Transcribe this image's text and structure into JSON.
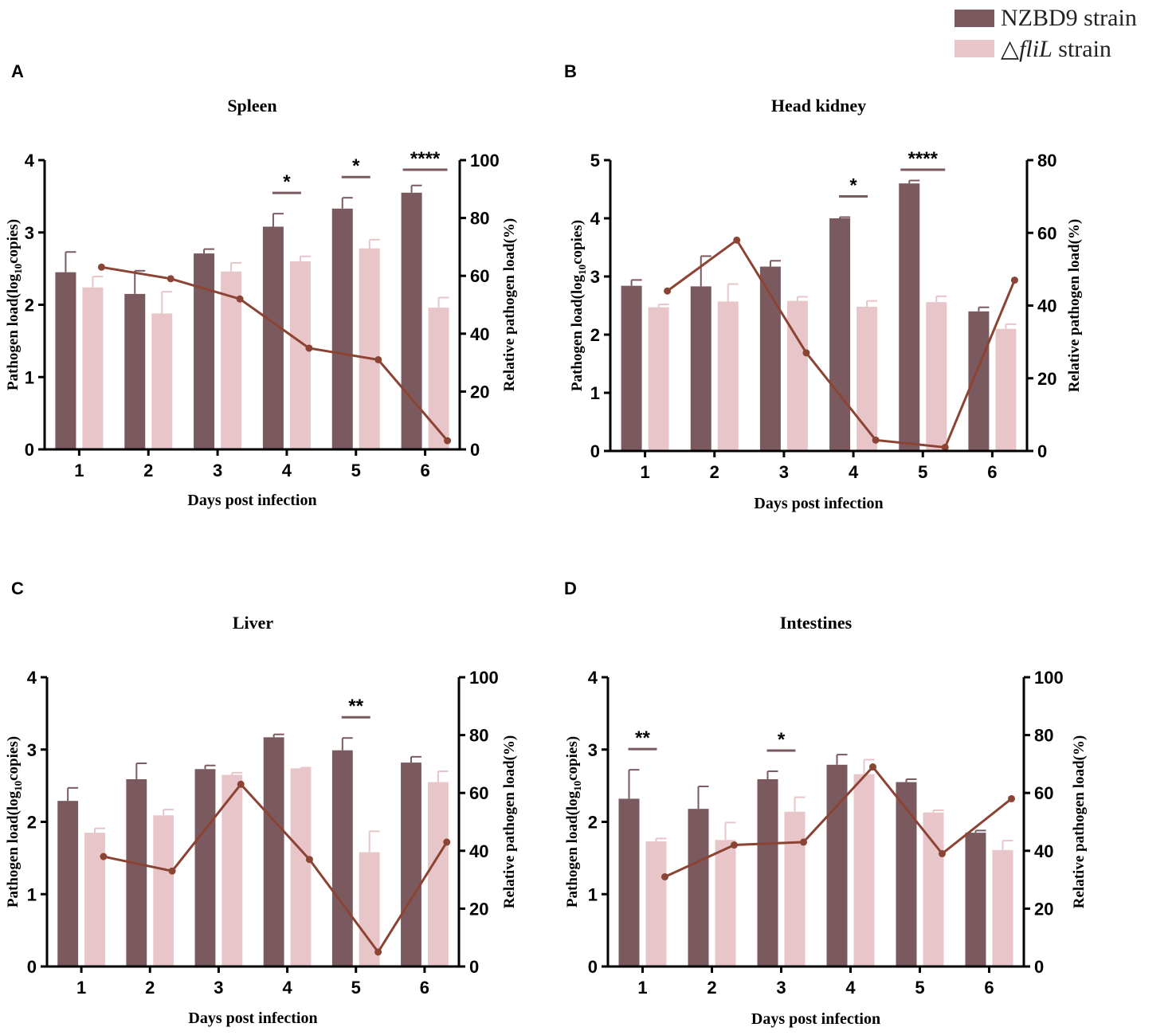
{
  "legend": {
    "nzbd9_label": "NZBD9 strain",
    "delta_symbol": "△",
    "delta_gene": "fliL",
    "delta_suffix": " strain"
  },
  "colors": {
    "nzbd9": "#7b5a5f",
    "delta": "#e8c5c8",
    "line": "#8b4434",
    "axis": "#000000"
  },
  "chart_data": [
    {
      "panel": "A",
      "type": "bar",
      "title": "Spleen",
      "xlabel": "Days post infection",
      "ylabel": "Pathogen load(log10copies)",
      "y2label": "Relative pathogen load(%)",
      "categories": [
        "1",
        "2",
        "3",
        "4",
        "5",
        "6"
      ],
      "ylim": [
        0,
        4
      ],
      "yticks": [
        0,
        1,
        2,
        3,
        4
      ],
      "y2lim": [
        0,
        100
      ],
      "y2ticks": [
        0,
        20,
        40,
        60,
        80,
        100
      ],
      "series": [
        {
          "name": "NZBD9 strain",
          "values": [
            2.45,
            2.15,
            2.71,
            3.08,
            3.33,
            3.55
          ],
          "errors": [
            0.28,
            0.32,
            0.06,
            0.18,
            0.15,
            0.1
          ]
        },
        {
          "name": "△fliL strain",
          "values": [
            2.24,
            1.88,
            2.46,
            2.6,
            2.78,
            1.96
          ],
          "errors": [
            0.15,
            0.3,
            0.12,
            0.07,
            0.12,
            0.14
          ]
        }
      ],
      "line": {
        "name": "Relative pathogen load",
        "values": [
          63,
          59,
          52,
          35,
          31,
          3
        ]
      },
      "significance": [
        {
          "category": "4",
          "label": "*"
        },
        {
          "category": "5",
          "label": "*"
        },
        {
          "category": "6",
          "label": "****"
        }
      ]
    },
    {
      "panel": "B",
      "type": "bar",
      "title": "Head kidney",
      "xlabel": "Days post infection",
      "ylabel": "Pathogen load(log10copies)",
      "y2label": "Relative pathogen load(%)",
      "categories": [
        "1",
        "2",
        "3",
        "4",
        "5",
        "6"
      ],
      "ylim": [
        0,
        5
      ],
      "yticks": [
        0,
        1,
        2,
        3,
        4,
        5
      ],
      "y2lim": [
        0,
        80
      ],
      "y2ticks": [
        0,
        20,
        40,
        60,
        80
      ],
      "series": [
        {
          "name": "NZBD9 strain",
          "values": [
            2.84,
            2.83,
            3.17,
            4.0,
            4.6,
            2.4
          ],
          "errors": [
            0.1,
            0.52,
            0.1,
            0.02,
            0.05,
            0.07
          ]
        },
        {
          "name": "△fliL strain",
          "values": [
            2.47,
            2.57,
            2.58,
            2.48,
            2.56,
            2.1
          ],
          "errors": [
            0.05,
            0.3,
            0.07,
            0.1,
            0.1,
            0.08
          ]
        }
      ],
      "line": {
        "name": "Relative pathogen load",
        "values": [
          44,
          58,
          27,
          3,
          1,
          47
        ]
      },
      "significance": [
        {
          "category": "4",
          "label": "*"
        },
        {
          "category": "5",
          "label": "****"
        }
      ]
    },
    {
      "panel": "C",
      "type": "bar",
      "title": "Liver",
      "xlabel": "Days post infection",
      "ylabel": "Pathogen load(log10copies)",
      "y2label": "Relative pathogen load(%)",
      "categories": [
        "1",
        "2",
        "3",
        "4",
        "5",
        "6"
      ],
      "ylim": [
        0,
        4
      ],
      "yticks": [
        0,
        1,
        2,
        3,
        4
      ],
      "y2lim": [
        0,
        100
      ],
      "y2ticks": [
        0,
        20,
        40,
        60,
        80,
        100
      ],
      "series": [
        {
          "name": "NZBD9 strain",
          "values": [
            2.29,
            2.59,
            2.73,
            3.17,
            2.99,
            2.82
          ],
          "errors": [
            0.18,
            0.22,
            0.05,
            0.04,
            0.17,
            0.08
          ]
        },
        {
          "name": "△fliL strain",
          "values": [
            1.85,
            2.09,
            2.65,
            2.74,
            1.58,
            2.55
          ],
          "errors": [
            0.06,
            0.08,
            0.03,
            0.01,
            0.29,
            0.15
          ]
        }
      ],
      "line": {
        "name": "Relative pathogen load",
        "values": [
          38,
          33,
          63,
          37,
          5,
          43
        ]
      },
      "significance": [
        {
          "category": "5",
          "label": "**"
        }
      ]
    },
    {
      "panel": "D",
      "type": "bar",
      "title": "Intestines",
      "xlabel": "Days post infection",
      "ylabel": "Pathogen load(log10copies)",
      "y2label": "Relative pathogen load(%)",
      "categories": [
        "1",
        "2",
        "3",
        "4",
        "5",
        "6"
      ],
      "ylim": [
        0,
        4
      ],
      "yticks": [
        0,
        1,
        2,
        3,
        4
      ],
      "y2lim": [
        0,
        100
      ],
      "y2ticks": [
        0,
        20,
        40,
        60,
        80,
        100
      ],
      "series": [
        {
          "name": "NZBD9 strain",
          "values": [
            2.32,
            2.18,
            2.59,
            2.79,
            2.55,
            1.85
          ],
          "errors": [
            0.4,
            0.31,
            0.11,
            0.14,
            0.04,
            0.03
          ]
        },
        {
          "name": "△fliL strain",
          "values": [
            1.73,
            1.75,
            2.14,
            2.66,
            2.13,
            1.61
          ],
          "errors": [
            0.04,
            0.24,
            0.2,
            0.2,
            0.03,
            0.13
          ]
        }
      ],
      "line": {
        "name": "Relative pathogen load",
        "values": [
          31,
          42,
          43,
          69,
          39,
          58
        ]
      },
      "significance": [
        {
          "category": "1",
          "label": "**"
        },
        {
          "category": "3",
          "label": "*"
        }
      ]
    }
  ]
}
